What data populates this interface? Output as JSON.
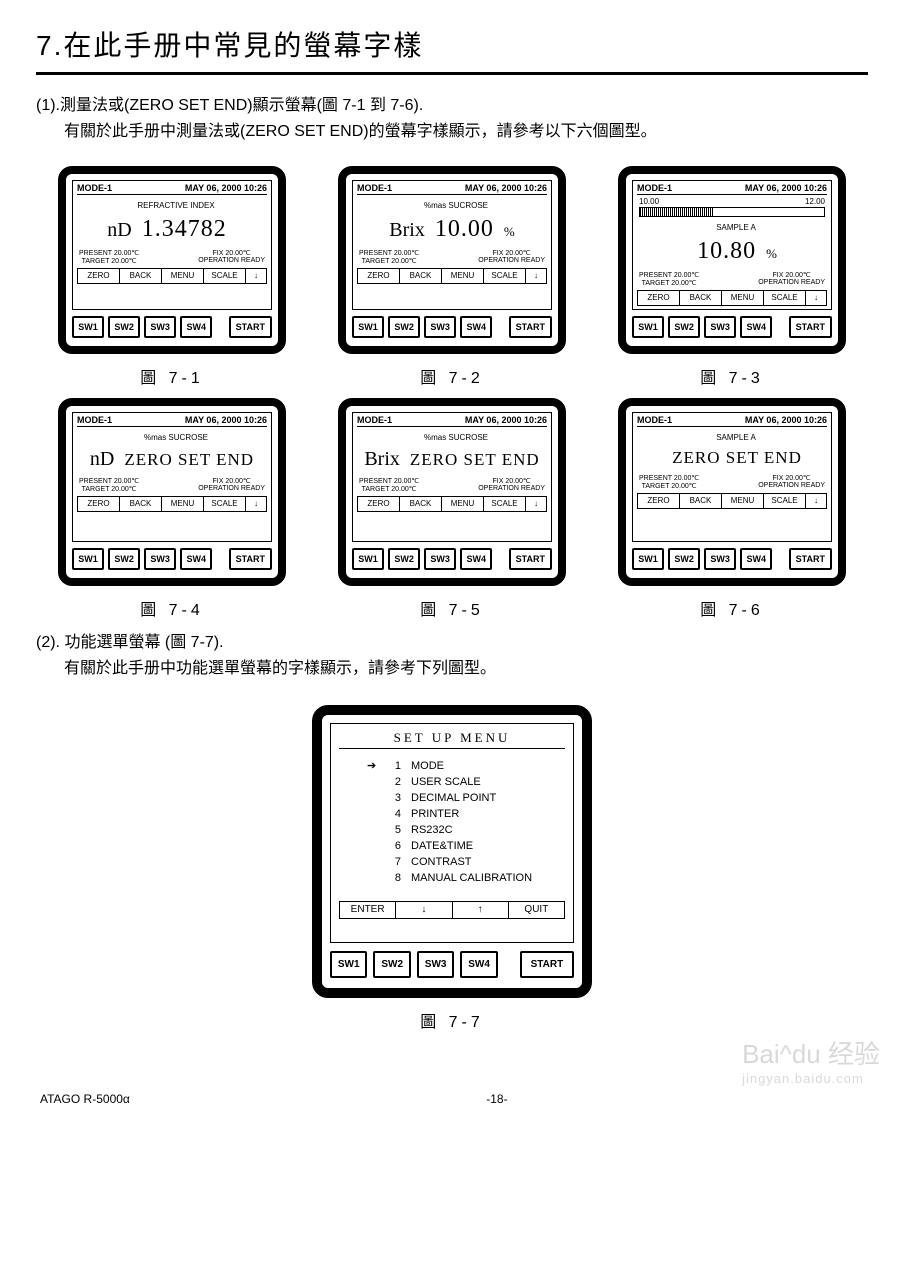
{
  "title": "7.在此手册中常見的螢幕字樣",
  "section1": {
    "line1": "(1).測量法或(ZERO SET END)顯示螢幕(圖 7-1 到 7-6).",
    "line2": "有關於此手册中測量法或(ZERO SET END)的螢幕字樣顯示，請參考以下六個圖型。"
  },
  "section2": {
    "line1": "(2). 功能選單螢幕 (圖 7-7).",
    "line2": "有關於此手册中功能選單螢幕的字樣顯示，請參考下列圖型。"
  },
  "common": {
    "mode": "MODE-1",
    "datetime": "MAY 06, 2000  10:26",
    "present": "PRESENT 20.00℃",
    "target": "TARGET  20.00℃",
    "fix": "FIX    20.00℃",
    "ready": "OPERATION READY",
    "softkeys": {
      "zero": "ZERO",
      "back": "BACK",
      "menu": "MENU",
      "scale": "SCALE",
      "arrow": "↓"
    },
    "buttons": {
      "sw1": "SW1",
      "sw2": "SW2",
      "sw3": "SW3",
      "sw4": "SW4",
      "start": "START"
    }
  },
  "figs": {
    "f71": {
      "label": "圖 7-1",
      "sub": "REFRACTIVE INDEX",
      "unit": "nD",
      "val": "1.34782",
      "pct": ""
    },
    "f72": {
      "label": "圖 7-2",
      "sub": "%mas SUCROSE",
      "unit": "Brix",
      "val": "10.00",
      "pct": "%"
    },
    "f73": {
      "label": "圖 7-3",
      "sub": "SAMPLE A",
      "unit": "",
      "val": "10.80",
      "pct": "%",
      "scale_left": "10.00",
      "scale_right": "12.00",
      "fill_pct": 40
    },
    "f74": {
      "label": "圖 7-4",
      "sub": "%mas SUCROSE",
      "unit": "nD",
      "val": "ZERO SET END",
      "pct": ""
    },
    "f75": {
      "label": "圖 7-5",
      "sub": "%mas SUCROSE",
      "unit": "Brix",
      "val": "ZERO SET END",
      "pct": ""
    },
    "f76": {
      "label": "圖 7-6",
      "sub": "SAMPLE A",
      "unit": "",
      "val": "ZERO SET END",
      "pct": ""
    }
  },
  "menu": {
    "title": "SET UP MENU",
    "items": [
      {
        "n": "1",
        "t": "MODE",
        "ptr": true
      },
      {
        "n": "2",
        "t": "USER SCALE"
      },
      {
        "n": "3",
        "t": "DECIMAL POINT"
      },
      {
        "n": "4",
        "t": "PRINTER"
      },
      {
        "n": "5",
        "t": "RS232C"
      },
      {
        "n": "6",
        "t": "DATE&TIME"
      },
      {
        "n": "7",
        "t": "CONTRAST"
      },
      {
        "n": "8",
        "t": "MANUAL CALIBRATION"
      }
    ],
    "softkeys": {
      "enter": "ENTER",
      "down": "↓",
      "up": "↑",
      "quit": "QUIT"
    },
    "label": "圖 7-7"
  },
  "footer": {
    "left": "ATAGO   R-5000α",
    "center": "-18-"
  },
  "watermark": {
    "main": "Bai^du 经验",
    "sub": "jingyan.baidu.com"
  }
}
